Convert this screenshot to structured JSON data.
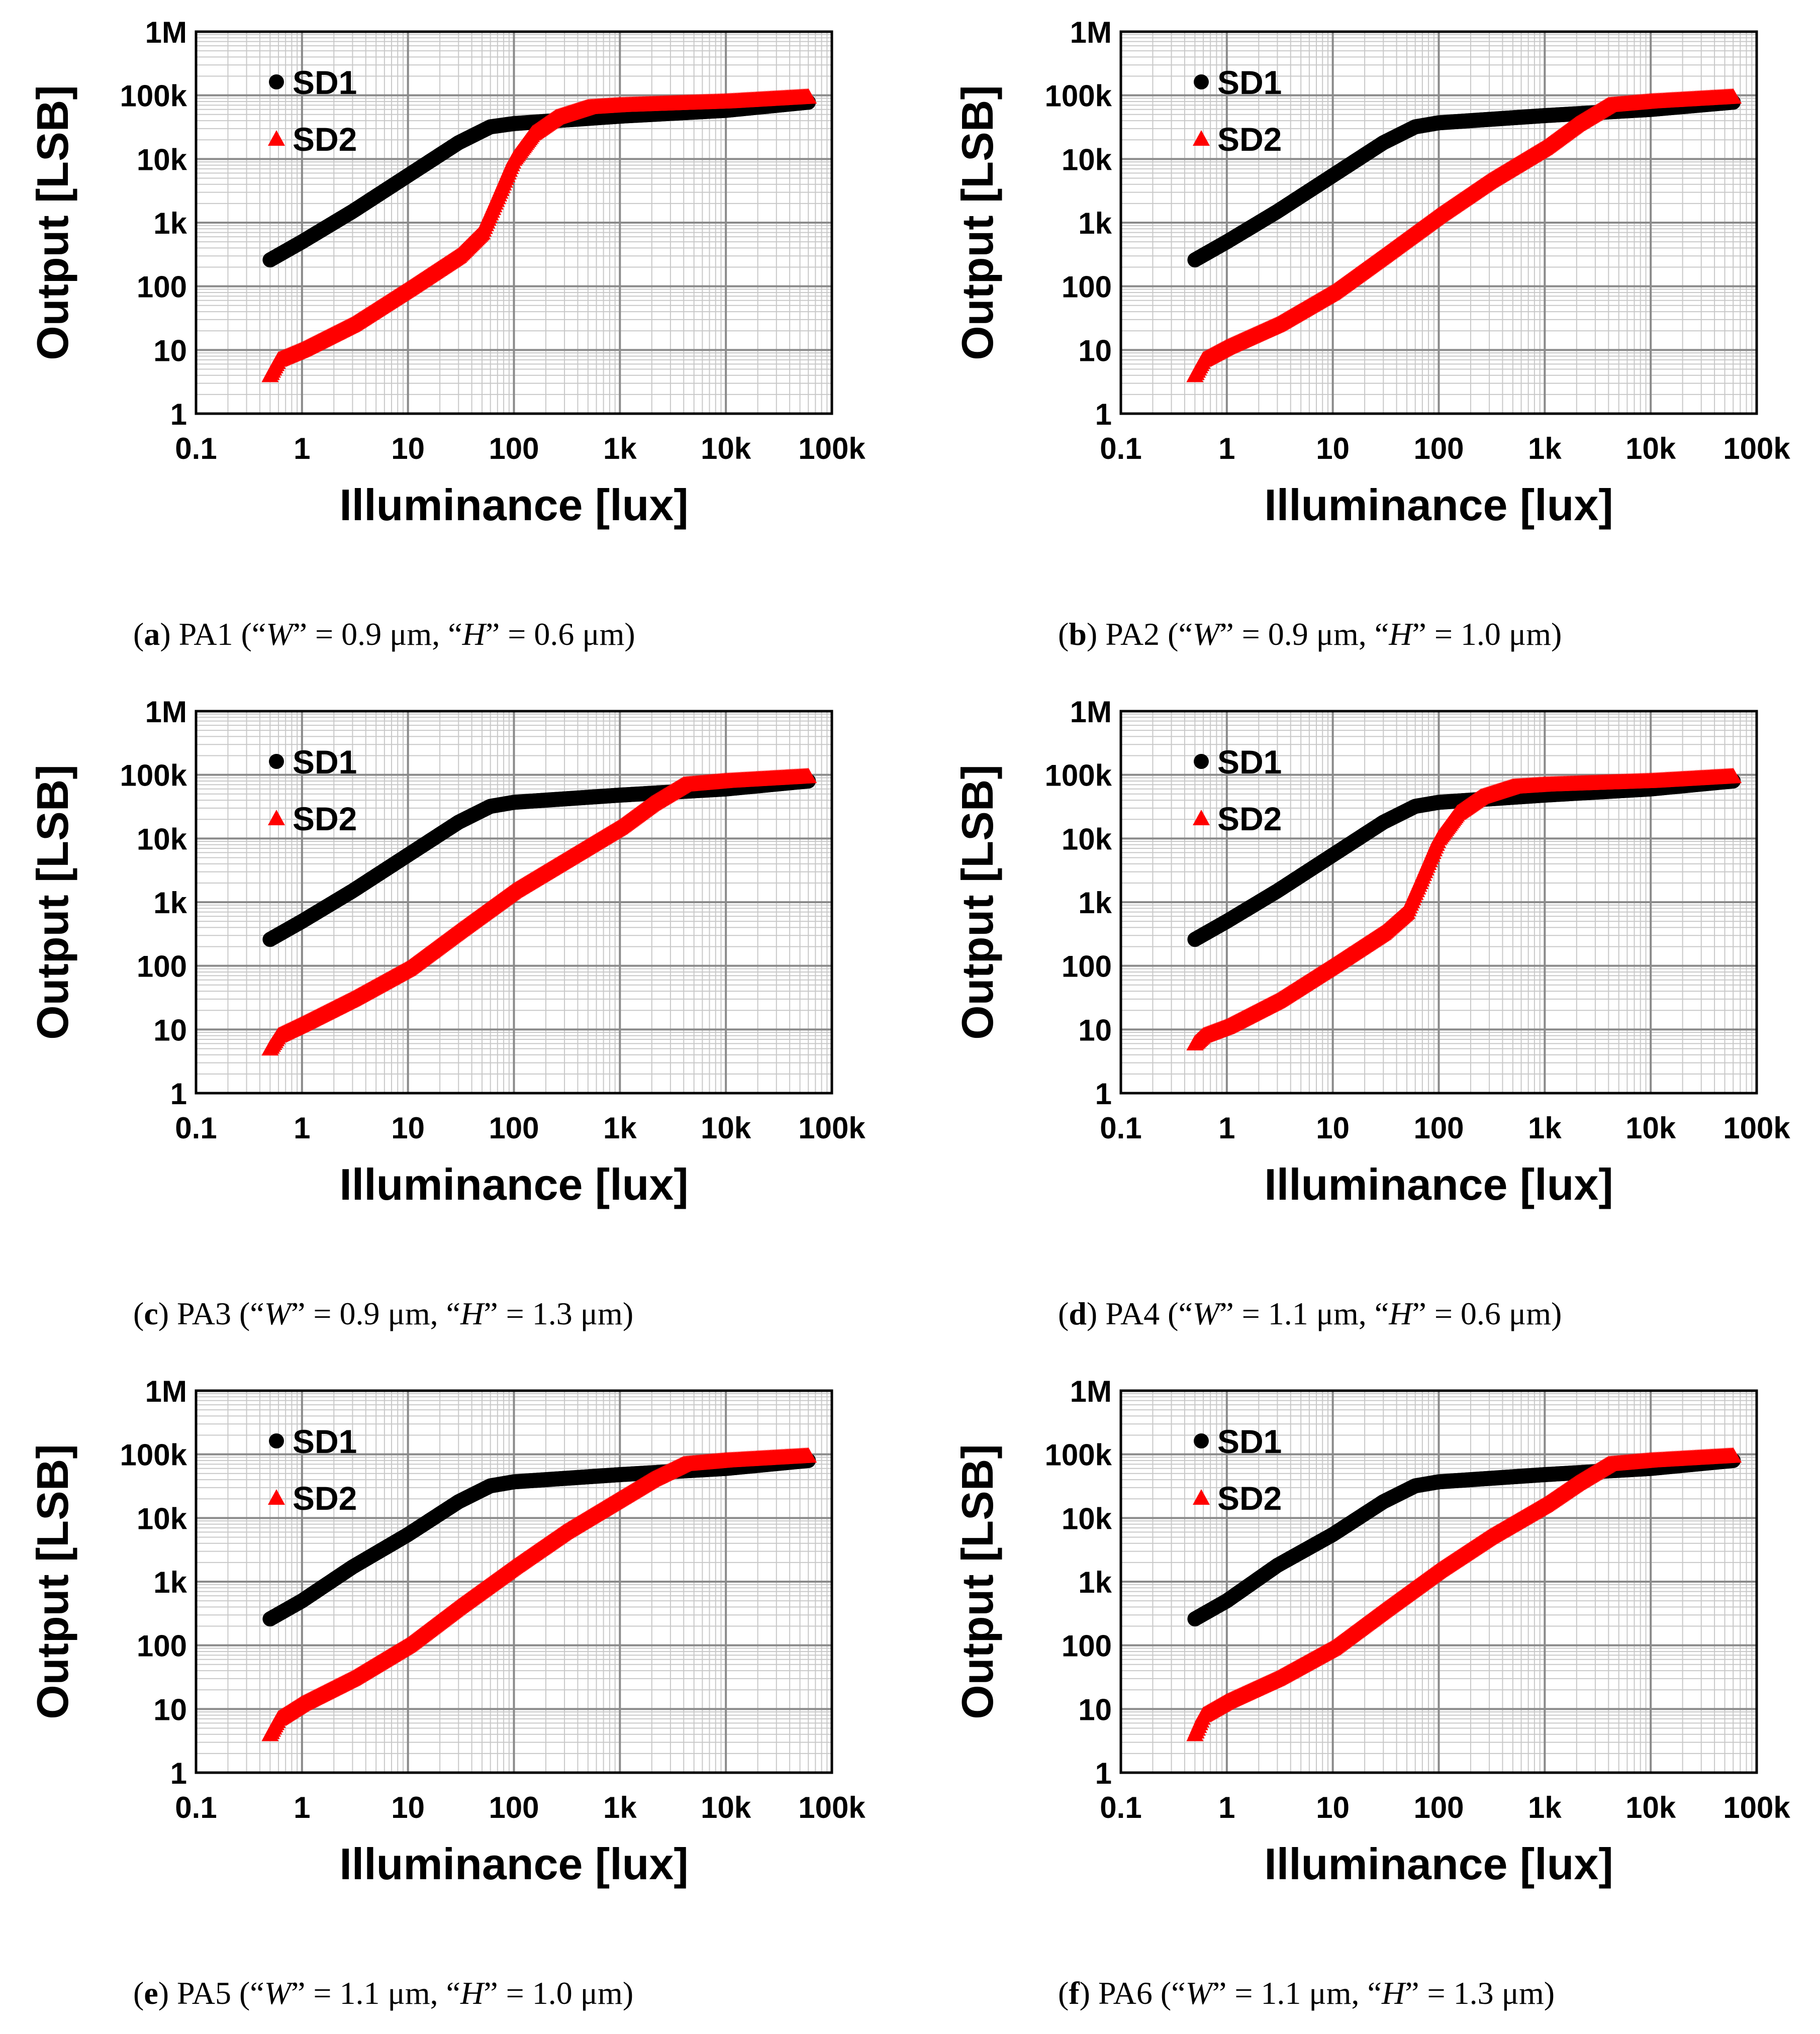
{
  "chart_data": [
    {
      "type": "scatter",
      "caption": {
        "letter": "a",
        "text_pre": " PA1 (“",
        "w_sym": "W",
        "w_text": "” = 0.9 μm, “",
        "h_sym": "H",
        "h_text": "” = 0.6 μm)"
      },
      "xlabel": "Illuminance [lux]",
      "ylabel": "Output [LSB]",
      "xscale": "log",
      "yscale": "log",
      "xlim": [
        0.1,
        100000
      ],
      "ylim": [
        1,
        1000000
      ],
      "legend_position": "top-left",
      "series": [
        {
          "name": "SD1",
          "marker": "circle",
          "color": "#000000",
          "points": [
            [
              0.5,
              260
            ],
            [
              1,
              500
            ],
            [
              3,
              1500
            ],
            [
              10,
              5500
            ],
            [
              30,
              18000
            ],
            [
              60,
              32000
            ],
            [
              100,
              36000
            ],
            [
              1000,
              47000
            ],
            [
              10000,
              58000
            ],
            [
              60000,
              78000
            ]
          ]
        },
        {
          "name": "SD2",
          "marker": "triangle",
          "color": "#ff0000",
          "points": [
            [
              0.5,
              4
            ],
            [
              0.6,
              7
            ],
            [
              1,
              10
            ],
            [
              3,
              25
            ],
            [
              10,
              90
            ],
            [
              30,
              300
            ],
            [
              50,
              700
            ],
            [
              70,
              2500
            ],
            [
              100,
              10000
            ],
            [
              150,
              25000
            ],
            [
              250,
              45000
            ],
            [
              500,
              65000
            ],
            [
              1000,
              70000
            ],
            [
              10000,
              80000
            ],
            [
              60000,
              95000
            ]
          ]
        }
      ]
    },
    {
      "type": "scatter",
      "caption": {
        "letter": "b",
        "text_pre": " PA2 (“",
        "w_sym": "W",
        "w_text": "” = 0.9 μm, “",
        "h_sym": "H",
        "h_text": "” = 1.0 μm)"
      },
      "xlabel": "Illuminance [lux]",
      "ylabel": "Output [LSB]",
      "xscale": "log",
      "yscale": "log",
      "xlim": [
        0.1,
        100000
      ],
      "ylim": [
        1,
        1000000
      ],
      "legend_position": "top-left",
      "series": [
        {
          "name": "SD1",
          "marker": "circle",
          "color": "#000000",
          "points": [
            [
              0.5,
              260
            ],
            [
              1,
              500
            ],
            [
              3,
              1500
            ],
            [
              10,
              5500
            ],
            [
              30,
              18000
            ],
            [
              60,
              32000
            ],
            [
              100,
              37000
            ],
            [
              1000,
              48000
            ],
            [
              10000,
              60000
            ],
            [
              60000,
              78000
            ]
          ]
        },
        {
          "name": "SD2",
          "marker": "triangle",
          "color": "#ff0000",
          "points": [
            [
              0.5,
              4
            ],
            [
              0.6,
              7
            ],
            [
              1,
              11
            ],
            [
              3,
              25
            ],
            [
              10,
              80
            ],
            [
              30,
              300
            ],
            [
              100,
              1300
            ],
            [
              300,
              4500
            ],
            [
              1000,
              15000
            ],
            [
              2000,
              35000
            ],
            [
              4000,
              70000
            ],
            [
              10000,
              80000
            ],
            [
              60000,
              95000
            ]
          ]
        }
      ]
    },
    {
      "type": "scatter",
      "caption": {
        "letter": "c",
        "text_pre": " PA3 (“",
        "w_sym": "W",
        "w_text": "” = 0.9 μm, “",
        "h_sym": "H",
        "h_text": "” = 1.3 μm)"
      },
      "xlabel": "Illuminance [lux]",
      "ylabel": "Output [LSB]",
      "xscale": "log",
      "yscale": "log",
      "xlim": [
        0.1,
        100000
      ],
      "ylim": [
        1,
        1000000
      ],
      "legend_position": "top-left",
      "series": [
        {
          "name": "SD1",
          "marker": "circle",
          "color": "#000000",
          "points": [
            [
              0.5,
              260
            ],
            [
              1,
              500
            ],
            [
              3,
              1500
            ],
            [
              10,
              5500
            ],
            [
              30,
              18000
            ],
            [
              60,
              32000
            ],
            [
              100,
              37000
            ],
            [
              1000,
              48000
            ],
            [
              10000,
              60000
            ],
            [
              60000,
              80000
            ]
          ]
        },
        {
          "name": "SD2",
          "marker": "triangle",
          "color": "#ff0000",
          "points": [
            [
              0.5,
              5
            ],
            [
              0.6,
              8
            ],
            [
              1,
              12
            ],
            [
              3,
              30
            ],
            [
              10,
              90
            ],
            [
              30,
              350
            ],
            [
              100,
              1500
            ],
            [
              300,
              4500
            ],
            [
              1000,
              15000
            ],
            [
              2000,
              35000
            ],
            [
              4000,
              70000
            ],
            [
              10000,
              80000
            ],
            [
              60000,
              95000
            ]
          ]
        }
      ]
    },
    {
      "type": "scatter",
      "caption": {
        "letter": "d",
        "text_pre": " PA4 (“",
        "w_sym": "W",
        "w_text": "” = 1.1 μm, “",
        "h_sym": "H",
        "h_text": "” = 0.6 μm)"
      },
      "xlabel": "Illuminance [lux]",
      "ylabel": "Output [LSB]",
      "xscale": "log",
      "yscale": "log",
      "xlim": [
        0.1,
        100000
      ],
      "ylim": [
        1,
        1000000
      ],
      "legend_position": "top-left",
      "series": [
        {
          "name": "SD1",
          "marker": "circle",
          "color": "#000000",
          "points": [
            [
              0.5,
              260
            ],
            [
              1,
              500
            ],
            [
              3,
              1500
            ],
            [
              10,
              5500
            ],
            [
              30,
              18000
            ],
            [
              60,
              32000
            ],
            [
              100,
              37000
            ],
            [
              1000,
              48000
            ],
            [
              10000,
              60000
            ],
            [
              60000,
              80000
            ]
          ]
        },
        {
          "name": "SD2",
          "marker": "triangle",
          "color": "#ff0000",
          "points": [
            [
              0.5,
              6
            ],
            [
              0.6,
              8
            ],
            [
              1,
              11
            ],
            [
              3,
              28
            ],
            [
              10,
              100
            ],
            [
              30,
              330
            ],
            [
              50,
              700
            ],
            [
              70,
              2500
            ],
            [
              100,
              10000
            ],
            [
              150,
              25000
            ],
            [
              250,
              45000
            ],
            [
              500,
              65000
            ],
            [
              1000,
              70000
            ],
            [
              10000,
              80000
            ],
            [
              60000,
              95000
            ]
          ]
        }
      ]
    },
    {
      "type": "scatter",
      "caption": {
        "letter": "e",
        "text_pre": " PA5 (“",
        "w_sym": "W",
        "w_text": "” = 1.1 μm, “",
        "h_sym": "H",
        "h_text": "” = 1.0 μm)"
      },
      "xlabel": "Illuminance [lux]",
      "ylabel": "Output [LSB]",
      "xscale": "log",
      "yscale": "log",
      "xlim": [
        0.1,
        100000
      ],
      "ylim": [
        1,
        1000000
      ],
      "legend_position": "top-left",
      "series": [
        {
          "name": "SD1",
          "marker": "circle",
          "color": "#000000",
          "points": [
            [
              0.5,
              260
            ],
            [
              1,
              500
            ],
            [
              3,
              1700
            ],
            [
              10,
              5500
            ],
            [
              30,
              18000
            ],
            [
              60,
              32000
            ],
            [
              100,
              37000
            ],
            [
              1000,
              48000
            ],
            [
              10000,
              60000
            ],
            [
              60000,
              80000
            ]
          ]
        },
        {
          "name": "SD2",
          "marker": "triangle",
          "color": "#ff0000",
          "points": [
            [
              0.5,
              4
            ],
            [
              0.6,
              7
            ],
            [
              1,
              12
            ],
            [
              3,
              30
            ],
            [
              10,
              100
            ],
            [
              30,
              400
            ],
            [
              100,
              1700
            ],
            [
              300,
              6000
            ],
            [
              1000,
              20000
            ],
            [
              2000,
              40000
            ],
            [
              4000,
              70000
            ],
            [
              10000,
              80000
            ],
            [
              60000,
              95000
            ]
          ]
        }
      ]
    },
    {
      "type": "scatter",
      "caption": {
        "letter": "f",
        "text_pre": " PA6   (“",
        "w_sym": "W",
        "w_text": "” = 1.1 μm, “",
        "h_sym": "H",
        "h_text": "” = 1.3 μm)"
      },
      "xlabel": "Illuminance [lux]",
      "ylabel": "Output [LSB]",
      "xscale": "log",
      "yscale": "log",
      "xlim": [
        0.1,
        100000
      ],
      "ylim": [
        1,
        1000000
      ],
      "legend_position": "top-left",
      "series": [
        {
          "name": "SD1",
          "marker": "circle",
          "color": "#000000",
          "points": [
            [
              0.5,
              260
            ],
            [
              1,
              500
            ],
            [
              3,
              1800
            ],
            [
              10,
              5500
            ],
            [
              30,
              18000
            ],
            [
              60,
              32000
            ],
            [
              100,
              37000
            ],
            [
              1000,
              48000
            ],
            [
              10000,
              60000
            ],
            [
              60000,
              80000
            ]
          ]
        },
        {
          "name": "SD2",
          "marker": "triangle",
          "color": "#ff0000",
          "points": [
            [
              0.5,
              4
            ],
            [
              0.6,
              8
            ],
            [
              1,
              13
            ],
            [
              3,
              30
            ],
            [
              10,
              90
            ],
            [
              30,
              350
            ],
            [
              100,
              1500
            ],
            [
              300,
              5000
            ],
            [
              1000,
              16000
            ],
            [
              2000,
              35000
            ],
            [
              4000,
              70000
            ],
            [
              10000,
              80000
            ],
            [
              60000,
              95000
            ]
          ]
        }
      ]
    }
  ],
  "tick_labels": {
    "x": [
      "0.1",
      "1",
      "10",
      "100",
      "1k",
      "10k",
      "100k"
    ],
    "y": [
      "1",
      "10",
      "100",
      "1k",
      "10k",
      "100k",
      "1M"
    ]
  }
}
